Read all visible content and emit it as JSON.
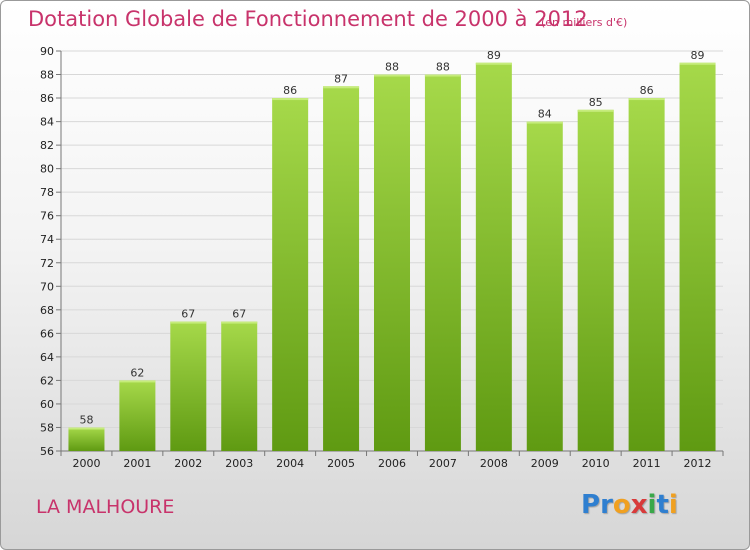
{
  "title": "Dotation Globale de Fonctionnement de 2000 à 2012",
  "subtitle": "(en milliers d'€)",
  "commune": "LA MALHOURE",
  "logo": {
    "letters": [
      "P",
      "r",
      "o",
      "x",
      "i",
      "t",
      "i"
    ],
    "colors": [
      "#2f7fd0",
      "#2f7fd0",
      "#f0a020",
      "#d83a3a",
      "#3aa84a",
      "#2f7fd0",
      "#f0a020"
    ]
  },
  "colors": {
    "title": "#c8336b",
    "bar_light": "#a6d94a",
    "bar_dark": "#5f9a12"
  },
  "chart_data": {
    "type": "bar",
    "categories": [
      "2000",
      "2001",
      "2002",
      "2003",
      "2004",
      "2005",
      "2006",
      "2007",
      "2008",
      "2009",
      "2010",
      "2011",
      "2012"
    ],
    "values": [
      58,
      62,
      67,
      67,
      86,
      87,
      88,
      88,
      89,
      84,
      85,
      86,
      89
    ],
    "ylim": [
      56,
      90
    ],
    "yticks": [
      56,
      58,
      60,
      62,
      64,
      66,
      68,
      70,
      72,
      74,
      76,
      78,
      80,
      82,
      84,
      86,
      88,
      90
    ],
    "grid": true,
    "legend": "none"
  }
}
